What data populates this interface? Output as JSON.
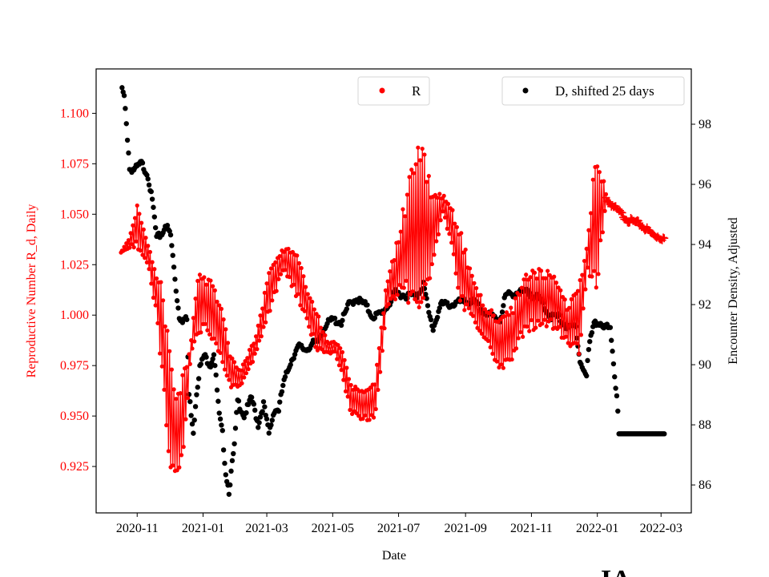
{
  "chart_data": {
    "type": "scatter",
    "xlabel": "Date",
    "ylabel_left": "Reproductive Number R_d, Daily",
    "ylabel_right": "Encounter Density, Adjusted",
    "xlim": [
      "2020-09-24",
      "2022-03-29"
    ],
    "ylim_left": [
      0.902,
      1.122
    ],
    "ylim_right": [
      85.07,
      99.84
    ],
    "x_ticks": [
      "2020-11",
      "2021-01",
      "2021-03",
      "2021-05",
      "2021-07",
      "2021-09",
      "2021-11",
      "2022-01",
      "2022-03"
    ],
    "y_ticks_left": [
      "0.925",
      "0.950",
      "0.975",
      "1.000",
      "1.025",
      "1.050",
      "1.075",
      "1.100"
    ],
    "y_ticks_right": [
      "86",
      "88",
      "90",
      "92",
      "94",
      "96",
      "98"
    ],
    "legend": [
      {
        "label": "R",
        "color": "#ff0000",
        "placement": "upper-center"
      },
      {
        "label": "D, shifted 25 days",
        "color": "#000000",
        "placement": "upper-right"
      }
    ],
    "colors": {
      "R": "#ff0000",
      "D": "#000000",
      "left_axis": "#ff0000"
    },
    "annotation": "IA",
    "series": [
      {
        "name": "R",
        "axis": "left",
        "description_fields": [
          "date",
          "center",
          "daily_oscillation_halfwidth"
        ],
        "points": [
          [
            "2020-10-17",
            1.031,
            0
          ],
          [
            "2020-10-25",
            1.036,
            0.003
          ],
          [
            "2020-11-01",
            1.045,
            0.012
          ],
          [
            "2020-11-11",
            1.03,
            0.005
          ],
          [
            "2020-11-18",
            1.012,
            0.01
          ],
          [
            "2020-11-25",
            0.99,
            0.025
          ],
          [
            "2020-12-01",
            0.95,
            0.035
          ],
          [
            "2020-12-08",
            0.94,
            0.025
          ],
          [
            "2020-12-15",
            0.955,
            0.02
          ],
          [
            "2020-12-21",
            0.985,
            0.004
          ],
          [
            "2020-12-27",
            1.005,
            0.015
          ],
          [
            "2021-01-06",
            1.006,
            0.015
          ],
          [
            "2021-01-16",
            0.995,
            0.015
          ],
          [
            "2021-01-27",
            0.972,
            0.008
          ],
          [
            "2021-02-04",
            0.968,
            0.004
          ],
          [
            "2021-02-19",
            0.985,
            0.005
          ],
          [
            "2021-03-05",
            1.015,
            0.012
          ],
          [
            "2021-03-16",
            1.028,
            0.006
          ],
          [
            "2021-03-29",
            1.02,
            0.012
          ],
          [
            "2021-04-07",
            1.005,
            0.01
          ],
          [
            "2021-04-18",
            0.99,
            0.01
          ],
          [
            "2021-04-26",
            0.984,
            0.003
          ],
          [
            "2021-05-03",
            0.984,
            0.003
          ],
          [
            "2021-05-11",
            0.975,
            0.008
          ],
          [
            "2021-05-18",
            0.958,
            0.008
          ],
          [
            "2021-05-29",
            0.955,
            0.008
          ],
          [
            "2021-06-09",
            0.958,
            0.01
          ],
          [
            "2021-06-15",
            0.985,
            0.01
          ],
          [
            "2021-06-20",
            1.01,
            0.008
          ],
          [
            "2021-07-01",
            1.025,
            0.015
          ],
          [
            "2021-07-12",
            1.04,
            0.035
          ],
          [
            "2021-07-20",
            1.045,
            0.05
          ],
          [
            "2021-07-31",
            1.04,
            0.025
          ],
          [
            "2021-08-11",
            1.055,
            0.005
          ],
          [
            "2021-08-19",
            1.045,
            0.01
          ],
          [
            "2021-08-26",
            1.025,
            0.02
          ],
          [
            "2021-09-10",
            1.005,
            0.01
          ],
          [
            "2021-09-21",
            0.995,
            0.01
          ],
          [
            "2021-10-02",
            0.985,
            0.015
          ],
          [
            "2021-10-14",
            0.99,
            0.015
          ],
          [
            "2021-10-25",
            1.005,
            0.015
          ],
          [
            "2021-11-05",
            1.008,
            0.015
          ],
          [
            "2021-11-20",
            1.008,
            0.015
          ],
          [
            "2021-12-05",
            0.995,
            0.01
          ],
          [
            "2021-12-16",
            1.0,
            0.02
          ],
          [
            "2021-12-23",
            1.03,
            0.01
          ],
          [
            "2021-12-31",
            1.05,
            0.04
          ],
          [
            "2022-01-09",
            1.058,
            0.003
          ]
        ]
      },
      {
        "name": "R (projected, + markers)",
        "axis": "left",
        "points": [
          [
            "2022-01-09",
            1.058
          ],
          [
            "2022-01-19",
            1.052
          ],
          [
            "2022-01-30",
            1.047
          ],
          [
            "2022-02-10",
            1.045
          ],
          [
            "2022-02-21",
            1.04
          ],
          [
            "2022-03-04",
            1.038
          ]
        ]
      },
      {
        "name": "D, shifted 25 days",
        "axis": "right",
        "points": [
          [
            "2020-10-18",
            99.15
          ],
          [
            "2020-10-20",
            98.9
          ],
          [
            "2020-10-22",
            98.0
          ],
          [
            "2020-10-24",
            97.1
          ],
          [
            "2020-10-25",
            96.5
          ],
          [
            "2020-10-30",
            96.5
          ],
          [
            "2020-11-05",
            96.7
          ],
          [
            "2020-11-11",
            96.3
          ],
          [
            "2020-11-16",
            95.2
          ],
          [
            "2020-11-19",
            94.2
          ],
          [
            "2020-11-25",
            94.4
          ],
          [
            "2020-11-27",
            94.7
          ],
          [
            "2020-12-02",
            94.3
          ],
          [
            "2020-12-04",
            93.6
          ],
          [
            "2020-12-07",
            92.5
          ],
          [
            "2020-12-10",
            91.6
          ],
          [
            "2020-12-13",
            91.5
          ],
          [
            "2020-12-17",
            91.5
          ],
          [
            "2020-12-19",
            89.0
          ],
          [
            "2020-12-23",
            87.8
          ],
          [
            "2020-12-26",
            89.1
          ],
          [
            "2020-12-29",
            89.9
          ],
          [
            "2021-01-02",
            90.3
          ],
          [
            "2021-01-08",
            90.0
          ],
          [
            "2021-01-11",
            90.4
          ],
          [
            "2021-01-16",
            88.3
          ],
          [
            "2021-01-19",
            87.7
          ],
          [
            "2021-01-22",
            86.4
          ],
          [
            "2021-01-25",
            85.8
          ],
          [
            "2021-01-28",
            86.7
          ],
          [
            "2021-01-30",
            87.3
          ],
          [
            "2021-02-02",
            88.8
          ],
          [
            "2021-02-08",
            88.3
          ],
          [
            "2021-02-15",
            88.9
          ],
          [
            "2021-02-21",
            88.0
          ],
          [
            "2021-02-26",
            88.7
          ],
          [
            "2021-03-03",
            87.7
          ],
          [
            "2021-03-08",
            88.5
          ],
          [
            "2021-03-12",
            88.5
          ],
          [
            "2021-03-16",
            89.3
          ],
          [
            "2021-03-22",
            90.0
          ],
          [
            "2021-03-27",
            90.4
          ],
          [
            "2021-03-31",
            90.6
          ],
          [
            "2021-04-06",
            90.5
          ],
          [
            "2021-04-13",
            90.7
          ],
          [
            "2021-04-16",
            90.7
          ],
          [
            "2021-04-24",
            91.3
          ],
          [
            "2021-05-01",
            91.5
          ],
          [
            "2021-05-09",
            91.4
          ],
          [
            "2021-05-16",
            92.0
          ],
          [
            "2021-05-23",
            92.2
          ],
          [
            "2021-05-31",
            92.0
          ],
          [
            "2021-06-07",
            91.6
          ],
          [
            "2021-06-15",
            91.7
          ],
          [
            "2021-06-22",
            92.0
          ],
          [
            "2021-06-28",
            92.4
          ],
          [
            "2021-07-07",
            92.3
          ],
          [
            "2021-07-18",
            92.3
          ],
          [
            "2021-07-24",
            92.7
          ],
          [
            "2021-07-29",
            91.7
          ],
          [
            "2021-08-02",
            91.2
          ],
          [
            "2021-08-09",
            92.0
          ],
          [
            "2021-08-20",
            92.0
          ],
          [
            "2021-08-28",
            92.1
          ],
          [
            "2021-09-08",
            92.1
          ],
          [
            "2021-09-19",
            91.7
          ],
          [
            "2021-09-27",
            91.6
          ],
          [
            "2021-10-03",
            91.5
          ],
          [
            "2021-10-08",
            92.3
          ],
          [
            "2021-10-19",
            92.4
          ],
          [
            "2021-10-30",
            92.4
          ],
          [
            "2021-11-11",
            92.1
          ],
          [
            "2021-11-18",
            91.6
          ],
          [
            "2021-11-26",
            91.6
          ],
          [
            "2021-12-05",
            91.2
          ],
          [
            "2021-12-12",
            91.3
          ],
          [
            "2021-12-16",
            90.1
          ],
          [
            "2021-12-22",
            89.6
          ],
          [
            "2021-12-24",
            90.5
          ],
          [
            "2021-12-29",
            91.5
          ],
          [
            "2022-01-06",
            91.2
          ],
          [
            "2022-01-13",
            91.3
          ],
          [
            "2022-01-16",
            90.1
          ],
          [
            "2022-01-18",
            89.3
          ],
          [
            "2022-01-20",
            88.4
          ],
          [
            "2022-01-21",
            87.7
          ],
          [
            "2022-03-04",
            87.7
          ]
        ]
      }
    ]
  }
}
